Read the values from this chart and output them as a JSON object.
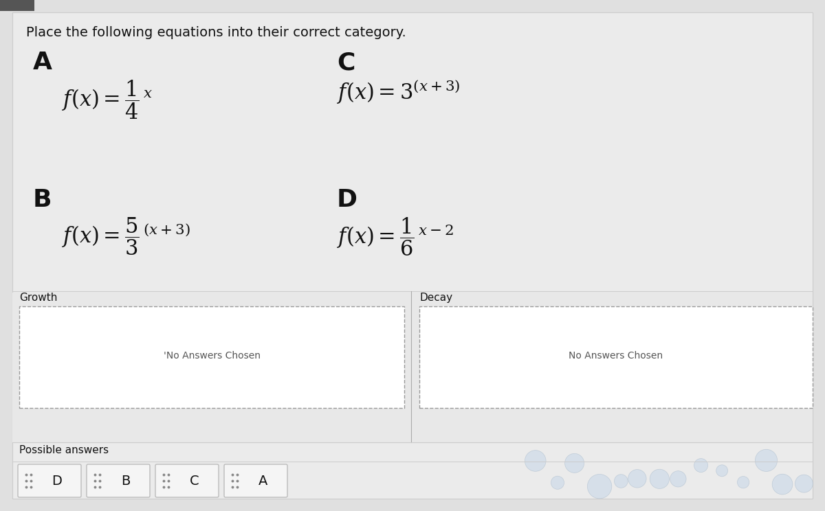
{
  "title": "Place the following equations into their correct category.",
  "bg_color": "#e8e8e8",
  "upper_bg": "#dcdcdc",
  "white": "#ffffff",
  "label_A": "A",
  "label_B": "B",
  "label_C": "C",
  "label_D": "D",
  "growth_label": "Growth",
  "decay_label": "Decay",
  "no_answers_text": "No Answers Chosen",
  "possible_answers_label": "Possible answers",
  "possible_items": [
    "D",
    "B",
    "C",
    "A"
  ],
  "text_color": "#111111",
  "gray_text": "#555555",
  "border_color": "#aaaaaa",
  "dashed_color": "#999999",
  "card_bg": "#f5f5f5",
  "card_border": "#bbbbbb"
}
